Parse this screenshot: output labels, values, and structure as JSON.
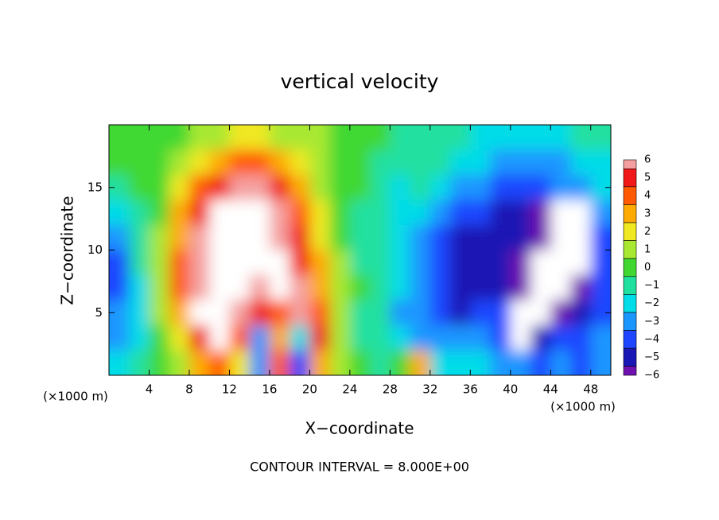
{
  "chart_data": {
    "type": "contour",
    "title": "vertical velocity",
    "xlabel": "X−coordinate",
    "ylabel": "Z−coordinate",
    "x_unit_left": "(×1000 m)",
    "x_unit_right": "(×1000 m)",
    "footer": "CONTOUR INTERVAL = 8.000E+00",
    "xlim": [
      0,
      50
    ],
    "ylim": [
      0,
      20
    ],
    "xticks": [
      4,
      8,
      12,
      16,
      20,
      24,
      28,
      32,
      36,
      40,
      44,
      48
    ],
    "yticks": [
      5,
      10,
      15
    ],
    "out_of_range_color": "#ffffff",
    "colorbar": {
      "levels": [
        6,
        5,
        4,
        3,
        2,
        1,
        0,
        {
          "value": -1,
          "label": "−1"
        },
        {
          "value": -2,
          "label": "−2"
        },
        {
          "value": -3,
          "label": "−3"
        },
        {
          "value": -4,
          "label": "−4"
        },
        {
          "value": -5,
          "label": "−5"
        },
        {
          "value": -6,
          "label": "−6"
        }
      ],
      "colors": [
        "#f4a0a0",
        "#f01818",
        "#ff5a00",
        "#ffaa00",
        "#f0e820",
        "#a8e830",
        "#40d830",
        "#20e0a0",
        "#00dce8",
        "#1a96ff",
        "#1e46ff",
        "#1a18b4",
        "#7010b0"
      ]
    },
    "x": [
      1,
      3,
      5,
      7,
      9,
      11,
      13,
      15,
      17,
      19,
      21,
      23,
      25,
      27,
      29,
      31,
      33,
      35,
      37,
      39,
      41,
      43,
      45,
      47,
      49
    ],
    "z": [
      19,
      17,
      15,
      13,
      11,
      9,
      7,
      5,
      3,
      1
    ],
    "field": [
      [
        0,
        0,
        0,
        0,
        1,
        1,
        2,
        2,
        1,
        1,
        1,
        0,
        0,
        0,
        -1,
        -1,
        -1,
        -1,
        -2,
        -2,
        -2,
        -2,
        -2,
        -1,
        -1
      ],
      [
        0,
        0,
        0,
        1,
        2,
        3,
        4,
        4,
        3,
        2,
        1,
        0,
        0,
        -1,
        -1,
        -1,
        -1,
        -2,
        -2,
        -3,
        -3,
        -3,
        -3,
        -2,
        -2
      ],
      [
        -1,
        0,
        0,
        2,
        4,
        5,
        6,
        6,
        5,
        3,
        1,
        0,
        0,
        -1,
        -2,
        -1,
        -2,
        -3,
        -3,
        -4,
        -4,
        -4,
        -3,
        -3,
        -2
      ],
      [
        -2,
        -1,
        0,
        3,
        5,
        7,
        7,
        7,
        6,
        4,
        2,
        0,
        -1,
        -1,
        -2,
        -2,
        -3,
        -4,
        -4,
        -5,
        -5,
        -6,
        -7,
        -7,
        -3
      ],
      [
        -3,
        -1,
        1,
        3,
        6,
        7,
        7,
        7,
        6,
        5,
        2,
        0,
        -1,
        -1,
        -2,
        -3,
        -4,
        -5,
        -5,
        -5,
        -5,
        -6,
        -7,
        -7,
        -4
      ],
      [
        -4,
        -1,
        1,
        4,
        6,
        7,
        7,
        7,
        7,
        5,
        3,
        1,
        -1,
        -1,
        -2,
        -3,
        -4,
        -5,
        -5,
        -5,
        -6,
        -7,
        -7,
        -7,
        -4
      ],
      [
        -4,
        -2,
        1,
        4,
        6,
        7,
        7,
        6,
        7,
        6,
        3,
        1,
        0,
        -1,
        -2,
        -3,
        -4,
        -5,
        -5,
        -5,
        -6,
        -7,
        -7,
        -6,
        -4
      ],
      [
        -3,
        -2,
        1,
        3,
        7,
        7,
        6,
        5,
        4,
        6,
        4,
        1,
        -1,
        -1,
        -3,
        -3,
        -4,
        -5,
        -4,
        -4,
        -7,
        -7,
        -6,
        -5,
        -4
      ],
      [
        -3,
        -2,
        0,
        2,
        5,
        7,
        4,
        -3,
        3,
        -2,
        5,
        1,
        -1,
        -1,
        -2,
        -3,
        -3,
        -3,
        -3,
        -4,
        -7,
        -5,
        -4,
        -4,
        -3
      ],
      [
        -2,
        -1,
        0,
        1,
        3,
        4,
        2,
        -3,
        4,
        -4,
        3,
        1,
        0,
        -1,
        0,
        3,
        -2,
        -2,
        -2,
        -3,
        -3,
        -4,
        -3,
        -4,
        -3
      ]
    ]
  }
}
